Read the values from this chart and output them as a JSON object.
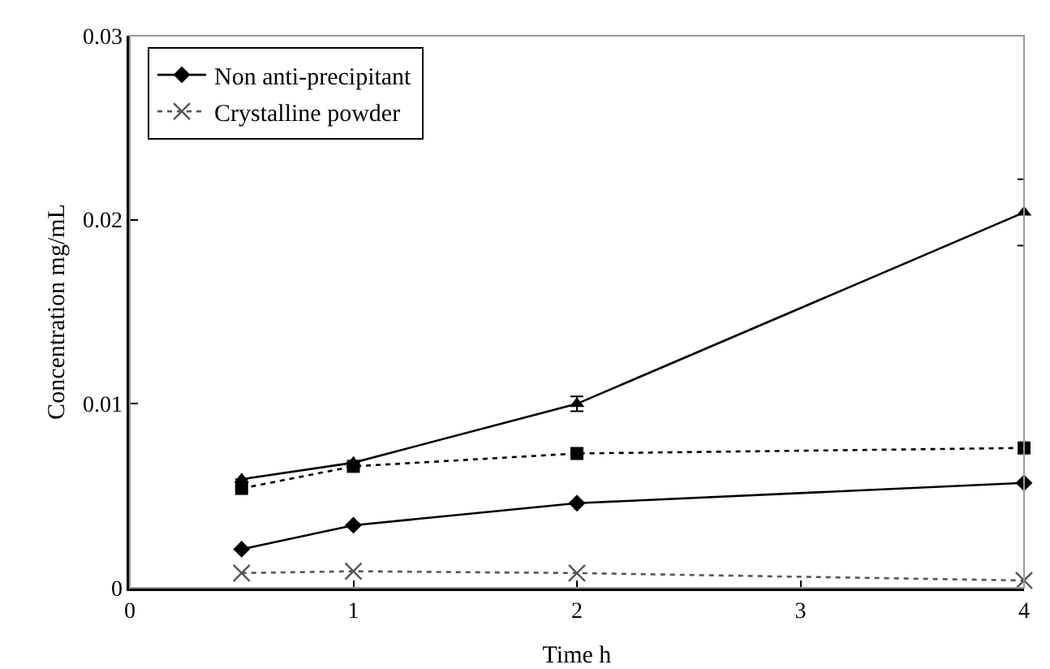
{
  "chart_data": {
    "type": "line",
    "xlabel": "Time h",
    "ylabel": "Concentration mg/mL",
    "x": [
      0.5,
      1,
      2,
      4
    ],
    "xlim": [
      0,
      4
    ],
    "xticks": [
      0,
      1,
      2,
      3,
      4
    ],
    "ylim": [
      0,
      0.03
    ],
    "yticks": [
      0,
      0.01,
      0.02,
      0.03
    ],
    "grid": false,
    "legend": "top left",
    "series": [
      {
        "name": "Non anti-precipitant",
        "color": "#000000",
        "marker": "diamond",
        "line_style": "solid",
        "values": [
          0.0021,
          0.0034,
          0.0046,
          0.0057
        ]
      },
      {
        "color": "#000000",
        "marker": "square",
        "line_style": "dotted",
        "values": [
          0.0054,
          0.0066,
          0.0073,
          0.0076
        ]
      },
      {
        "color": "#000000",
        "marker": "triangle",
        "line_style": "solid",
        "values": [
          0.0059,
          0.0068,
          0.01,
          0.0204
        ],
        "errors": [
          null,
          null,
          0.0004,
          0.0018
        ]
      },
      {
        "name": "Crystalline powder",
        "color": "#555555",
        "marker": "cross",
        "line_style": "dotted",
        "values": [
          0.0008,
          0.0009,
          0.0008,
          0.0004
        ]
      }
    ]
  }
}
